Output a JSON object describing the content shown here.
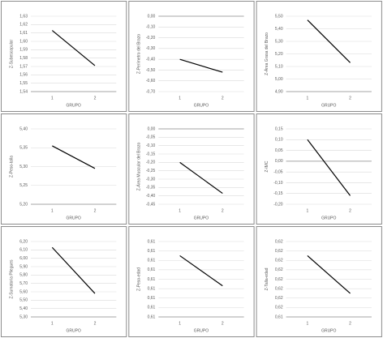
{
  "chart_data": [
    {
      "type": "line",
      "ylabel": "Z-Subescapular",
      "xlabel": "GRUPO",
      "categories": [
        "1",
        "2"
      ],
      "values": [
        1.613,
        1.571
      ],
      "color": "#000000",
      "ylim": [
        1.54,
        1.63
      ],
      "yticks": [
        {
          "value": 1.63,
          "label": "1,63"
        },
        {
          "value": 1.62,
          "label": "1,62"
        },
        {
          "value": 1.61,
          "label": "1,61"
        },
        {
          "value": 1.6,
          "label": "1,60"
        },
        {
          "value": 1.59,
          "label": "1,59"
        },
        {
          "value": 1.58,
          "label": "1,58"
        },
        {
          "value": 1.57,
          "label": "1,57"
        },
        {
          "value": 1.56,
          "label": "1,56"
        },
        {
          "value": 1.55,
          "label": "1,55"
        },
        {
          "value": 1.54,
          "label": "1,54"
        }
      ],
      "grid": true
    },
    {
      "type": "line",
      "ylabel": "Z-Perímetro del Brazo",
      "xlabel": "GRUPO",
      "categories": [
        "1",
        "2"
      ],
      "values": [
        -0.4,
        -0.52
      ],
      "color": "#000000",
      "ylim": [
        -0.7,
        0
      ],
      "yticks": [
        {
          "value": 0,
          "label": "0,00"
        },
        {
          "value": -0.1,
          "label": "-0,10"
        },
        {
          "value": -0.2,
          "label": "-0,20"
        },
        {
          "value": -0.3,
          "label": "-0,30"
        },
        {
          "value": -0.4,
          "label": "-0,40"
        },
        {
          "value": -0.5,
          "label": "-0,50"
        },
        {
          "value": -0.6,
          "label": "-0,60"
        },
        {
          "value": -0.7,
          "label": "-0,70"
        }
      ],
      "grid": true
    },
    {
      "type": "line",
      "ylabel": "Z-Área Grasa del Brazo",
      "xlabel": "GRUPO",
      "categories": [
        "1",
        "2"
      ],
      "values": [
        5.47,
        5.13
      ],
      "color": "#000000",
      "ylim": [
        4.9,
        5.5
      ],
      "yticks": [
        {
          "value": 5.5,
          "label": "5,50"
        },
        {
          "value": 5.4,
          "label": "5,40"
        },
        {
          "value": 5.3,
          "label": "5,30"
        },
        {
          "value": 5.2,
          "label": "5,20"
        },
        {
          "value": 5.1,
          "label": "5,10"
        },
        {
          "value": 5.0,
          "label": "5,00"
        },
        {
          "value": 4.9,
          "label": "4,90"
        }
      ],
      "grid": true
    },
    {
      "type": "line",
      "ylabel": "Z-Peso-talla",
      "xlabel": "GRUPO",
      "categories": [
        "1",
        "2"
      ],
      "values": [
        5.355,
        5.295
      ],
      "color": "#000000",
      "ylim": [
        5.2,
        5.4
      ],
      "yticks": [
        {
          "value": 5.4,
          "label": "5,40"
        },
        {
          "value": 5.35,
          "label": "5,35"
        },
        {
          "value": 5.3,
          "label": "5,30"
        },
        {
          "value": 5.25,
          "label": "5,25"
        },
        {
          "value": 5.2,
          "label": "5,20"
        }
      ],
      "grid": true
    },
    {
      "type": "line",
      "ylabel": "Z-Área Muscular del Brazo",
      "xlabel": "GRUPO",
      "categories": [
        "1",
        "2"
      ],
      "values": [
        -0.2,
        -0.385
      ],
      "color": "#000000",
      "ylim": [
        -0.45,
        0
      ],
      "yticks": [
        {
          "value": 0,
          "label": "0,00"
        },
        {
          "value": -0.05,
          "label": "-0,05"
        },
        {
          "value": -0.1,
          "label": "-0,10"
        },
        {
          "value": -0.15,
          "label": "-0,15"
        },
        {
          "value": -0.2,
          "label": "-0,20"
        },
        {
          "value": -0.25,
          "label": "-0,25"
        },
        {
          "value": -0.3,
          "label": "-0,30"
        },
        {
          "value": -0.35,
          "label": "-0,35"
        },
        {
          "value": -0.4,
          "label": "-0,40"
        },
        {
          "value": -0.45,
          "label": "-0,45"
        }
      ],
      "grid": true
    },
    {
      "type": "line",
      "ylabel": "Z-IMC",
      "xlabel": "GRUPO",
      "categories": [
        "1",
        "2"
      ],
      "values": [
        0.1,
        -0.16
      ],
      "color": "#000000",
      "ylim": [
        -0.2,
        0.15
      ],
      "yticks": [
        {
          "value": 0.15,
          "label": "0,15"
        },
        {
          "value": 0.1,
          "label": "0,10"
        },
        {
          "value": 0.05,
          "label": "0,05"
        },
        {
          "value": 0,
          "label": "0,00"
        },
        {
          "value": -0.05,
          "label": "-0,05"
        },
        {
          "value": -0.1,
          "label": "-0,10"
        },
        {
          "value": -0.15,
          "label": "-0,15"
        },
        {
          "value": -0.2,
          "label": "-0,20"
        }
      ],
      "grid": true
    },
    {
      "type": "line",
      "ylabel": "Z-Sumatoria Pliegues",
      "xlabel": "GRUPO",
      "categories": [
        "1",
        "2"
      ],
      "values": [
        6.13,
        5.58
      ],
      "color": "#000000",
      "ylim": [
        5.3,
        6.2
      ],
      "yticks": [
        {
          "value": 6.2,
          "label": "6,20"
        },
        {
          "value": 6.1,
          "label": "6,10"
        },
        {
          "value": 6.0,
          "label": "6,00"
        },
        {
          "value": 5.9,
          "label": "5,90"
        },
        {
          "value": 5.8,
          "label": "5,80"
        },
        {
          "value": 5.7,
          "label": "5,70"
        },
        {
          "value": 5.6,
          "label": "5,60"
        },
        {
          "value": 5.5,
          "label": "5,50"
        },
        {
          "value": 5.4,
          "label": "5,40"
        },
        {
          "value": 5.3,
          "label": "5,30"
        }
      ],
      "grid": true
    },
    {
      "type": "line",
      "ylabel": "Z-Peso-edad",
      "xlabel": "GRUPO",
      "categories": [
        "1",
        "2"
      ],
      "values": [
        0.6125,
        0.6093
      ],
      "color": "#000000",
      "ylim": [
        0.606,
        0.614
      ],
      "yticks": [
        {
          "value": 0.614,
          "label": "0,61"
        },
        {
          "value": 0.613,
          "label": "0,61"
        },
        {
          "value": 0.612,
          "label": "0,61"
        },
        {
          "value": 0.611,
          "label": "0,61"
        },
        {
          "value": 0.61,
          "label": "0,61"
        },
        {
          "value": 0.609,
          "label": "0,61"
        },
        {
          "value": 0.608,
          "label": "0,61"
        },
        {
          "value": 0.607,
          "label": "0,61"
        },
        {
          "value": 0.606,
          "label": "0,61"
        }
      ],
      "grid": true
    },
    {
      "type": "line",
      "ylabel": "Z-Talla-edad",
      "xlabel": "GRUPO",
      "categories": [
        "1",
        "2"
      ],
      "values": [
        0.6205,
        0.6165
      ],
      "color": "#000000",
      "ylim": [
        0.614,
        0.622
      ],
      "yticks": [
        {
          "value": 0.622,
          "label": "0,62"
        },
        {
          "value": 0.621,
          "label": "0,62"
        },
        {
          "value": 0.62,
          "label": "0,62"
        },
        {
          "value": 0.619,
          "label": "0,62"
        },
        {
          "value": 0.618,
          "label": "0,62"
        },
        {
          "value": 0.617,
          "label": "0,62"
        },
        {
          "value": 0.616,
          "label": "0,62"
        },
        {
          "value": 0.615,
          "label": "0,62"
        },
        {
          "value": 0.614,
          "label": "0,61"
        }
      ],
      "grid": true
    }
  ]
}
